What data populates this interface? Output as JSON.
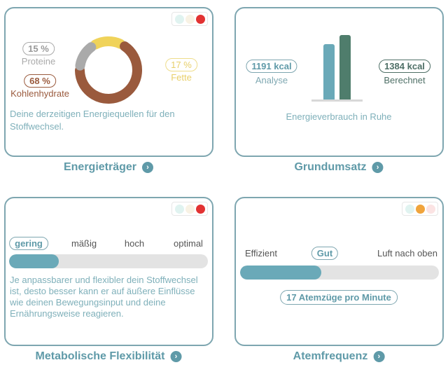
{
  "colors": {
    "accent": "#5f9aa8",
    "protein": "#aaaaaa",
    "carbs": "#9a5a3d",
    "fat": "#f0d35a"
  },
  "energy": {
    "title": "Energieträger",
    "protein": {
      "pct": "15 %",
      "label": "Proteine",
      "value": 15
    },
    "carbs": {
      "pct": "68 %",
      "label": "Kohlenhydrate",
      "value": 68
    },
    "fat": {
      "pct": "17 %",
      "label": "Fette",
      "value": 17
    },
    "description": "Deine derzeitigen Energiequellen für den Stoffwechsel.",
    "status": "red"
  },
  "grund": {
    "title": "Grundumsatz",
    "analyse_value": "1191 kcal",
    "analyse_label": "Analyse",
    "calc_value": "1384 kcal",
    "calc_label": "Berechnet",
    "caption": "Energieverbrauch in Ruhe",
    "analyse_kcal": 1191,
    "calc_kcal": 1384
  },
  "flex": {
    "title": "Metabolische Flexibilität",
    "levels": [
      "gering",
      "mäßig",
      "hoch",
      "optimal"
    ],
    "selected": "gering",
    "progress": 0.25,
    "description": "Je anpassbarer und flexibler dein Stoffwechsel ist, desto besser kann er auf äußere Einflüsse wie deinen Bewegungsinput und deine Ernährungsweise reagieren.",
    "status": "red"
  },
  "atem": {
    "title": "Atemfrequenz",
    "left": "Effizient",
    "middle": "Gut",
    "right": "Luft nach oben",
    "progress": 0.41,
    "value": "17 Atemzüge pro Minute",
    "status": "orange"
  }
}
